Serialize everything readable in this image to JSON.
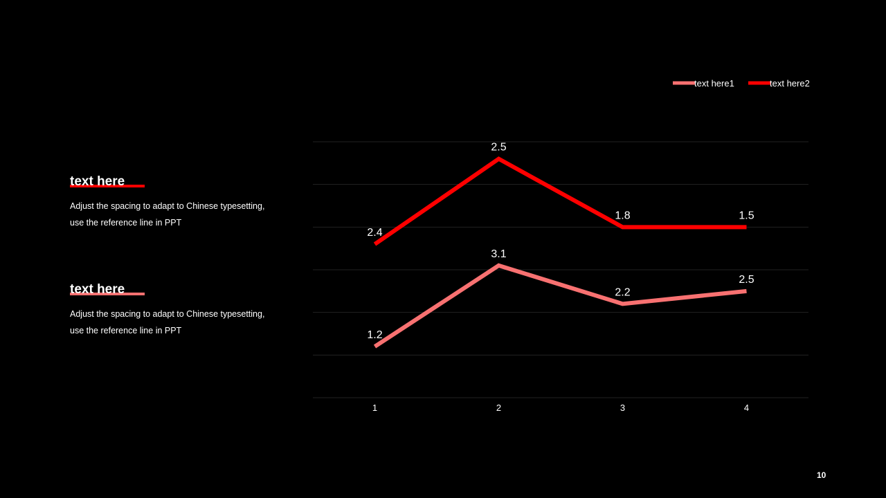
{
  "slide": {
    "page_number": "10"
  },
  "text_blocks": [
    {
      "heading": "text here",
      "body": "Adjust the spacing to adapt to Chinese typesetting, use the reference line in PPT",
      "underline_color": "#ff0000"
    },
    {
      "heading": "text here",
      "body": "Adjust the spacing to adapt to Chinese typesetting, use the reference line in PPT",
      "underline_color": "#f87171"
    }
  ],
  "chart_data": {
    "type": "line",
    "title": "",
    "xlabel": "",
    "ylabel": "",
    "categories": [
      "1",
      "2",
      "3",
      "4"
    ],
    "series": [
      {
        "name": "text here1",
        "values": [
          1.2,
          3.1,
          2.2,
          2.5
        ],
        "color": "#f87171"
      },
      {
        "name": "text here2",
        "values": [
          2.4,
          2.5,
          1.8,
          1.5
        ],
        "color": "#ff0000"
      }
    ],
    "legend_position": "top-right",
    "grid": true,
    "gridline_color": "#222222",
    "data_labels": true
  }
}
